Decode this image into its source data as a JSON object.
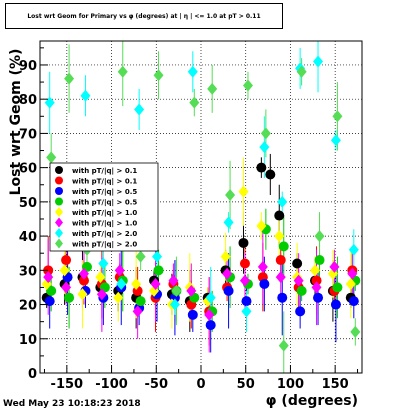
{
  "window": {
    "title": "Lost wrt Geom for Primary vs φ (degrees) at | η | <= 1.0 at pT > 0.11",
    "timestamp": "Wed May 23 10:18:23 2018"
  },
  "chart_data": {
    "type": "scatter",
    "title": "Lost wrt Geom for Primary vs φ (degrees) at | η | <= 1.0 at pT > 0.11",
    "xlabel": "φ (degrees)",
    "ylabel": "Lost wrt Geom (%)",
    "xlim": [
      -180,
      180
    ],
    "ylim": [
      0,
      97
    ],
    "xticks": [
      -150,
      -100,
      -50,
      0,
      50,
      100,
      150
    ],
    "yticks": [
      0,
      10,
      20,
      30,
      40,
      50,
      60,
      70,
      80,
      90
    ],
    "grid": true,
    "legend_placement": "left-center",
    "series": [
      {
        "name": "with pT/|q| > 0.1",
        "color": "#000000",
        "marker": "circle",
        "x": [
          -170,
          -150,
          -130,
          -110,
          -90,
          -70,
          -50,
          -30,
          -10,
          10,
          30,
          50,
          70,
          80,
          90,
          110,
          130,
          150,
          170
        ],
        "y": [
          22,
          26,
          28,
          25,
          24,
          22,
          27,
          23,
          21,
          22,
          30,
          38,
          60,
          58,
          46,
          32,
          27,
          24,
          22
        ]
      },
      {
        "name": "with pT/|q| > 0.1",
        "color": "#ff0000",
        "marker": "circle",
        "x": [
          -170,
          -150,
          -130,
          -110,
          -90,
          -70,
          -50,
          -30,
          -10,
          10,
          30,
          50,
          70,
          90,
          110,
          130,
          150,
          170
        ],
        "y": [
          30,
          33,
          27,
          26,
          28,
          24,
          22,
          26,
          20,
          18,
          25,
          32,
          28,
          33,
          25,
          27,
          24,
          30
        ]
      },
      {
        "name": "with pT/|q| > 0.5",
        "color": "#0000ff",
        "marker": "circle",
        "x": [
          -170,
          -150,
          -130,
          -110,
          -90,
          -70,
          -50,
          -30,
          -10,
          10,
          30,
          50,
          70,
          90,
          110,
          130,
          150,
          170
        ],
        "y": [
          21,
          28,
          24,
          22,
          25,
          19,
          23,
          22,
          17,
          14,
          24,
          21,
          26,
          22,
          18,
          22,
          20,
          21
        ]
      },
      {
        "name": "with pT/|q| > 0.5",
        "color": "#00cc00",
        "marker": "circle",
        "x": [
          -170,
          -150,
          -130,
          -110,
          -90,
          -70,
          -50,
          -30,
          -10,
          10,
          30,
          50,
          70,
          90,
          110,
          130,
          150,
          170
        ],
        "y": [
          24,
          22,
          31,
          25,
          27,
          21,
          30,
          24,
          22,
          18,
          28,
          26,
          42,
          37,
          24,
          33,
          25,
          27
        ]
      },
      {
        "name": "with pT/|q| > 1.0",
        "color": "#ffff00",
        "marker": "diamond",
        "x": [
          -170,
          -150,
          -130,
          -110,
          -90,
          -70,
          -50,
          -30,
          -10,
          10,
          30,
          50,
          70,
          90,
          110,
          130,
          150,
          170
        ],
        "y": [
          26,
          30,
          23,
          28,
          22,
          26,
          24,
          20,
          25,
          21,
          34,
          53,
          43,
          40,
          28,
          30,
          29,
          26
        ]
      },
      {
        "name": "with pT/|q| > 1.0",
        "color": "#ff00ff",
        "marker": "diamond",
        "x": [
          -170,
          -150,
          -130,
          -110,
          -90,
          -70,
          -50,
          -30,
          -10,
          10,
          30,
          50,
          70,
          90,
          110,
          130,
          150,
          170
        ],
        "y": [
          28,
          25,
          29,
          23,
          30,
          18,
          26,
          27,
          24,
          17,
          29,
          27,
          31,
          28,
          27,
          25,
          31,
          29
        ]
      },
      {
        "name": "with pT/|q| > 2.0",
        "color": "#00ffff",
        "marker": "diamond",
        "x": [
          -170,
          -150,
          -130,
          -110,
          -90,
          -70,
          -50,
          -30,
          -10,
          10,
          30,
          50,
          70,
          90,
          110,
          130,
          150,
          170
        ],
        "y": [
          79,
          45,
          81,
          32,
          26,
          77,
          34,
          20,
          88,
          22,
          44,
          18,
          66,
          50,
          89,
          91,
          68,
          36
        ]
      },
      {
        "name": "with pT/|q| > 2.0",
        "color": "#55dd55",
        "marker": "diamond",
        "x": [
          -170,
          -150,
          -130,
          -110,
          -90,
          -70,
          -50,
          -30,
          -10,
          10,
          30,
          50,
          70,
          90,
          110,
          130,
          150,
          170
        ],
        "y": [
          63,
          86,
          36,
          44,
          88,
          34,
          87,
          24,
          79,
          83,
          52,
          84,
          70,
          8,
          88,
          40,
          75,
          12
        ]
      }
    ]
  }
}
